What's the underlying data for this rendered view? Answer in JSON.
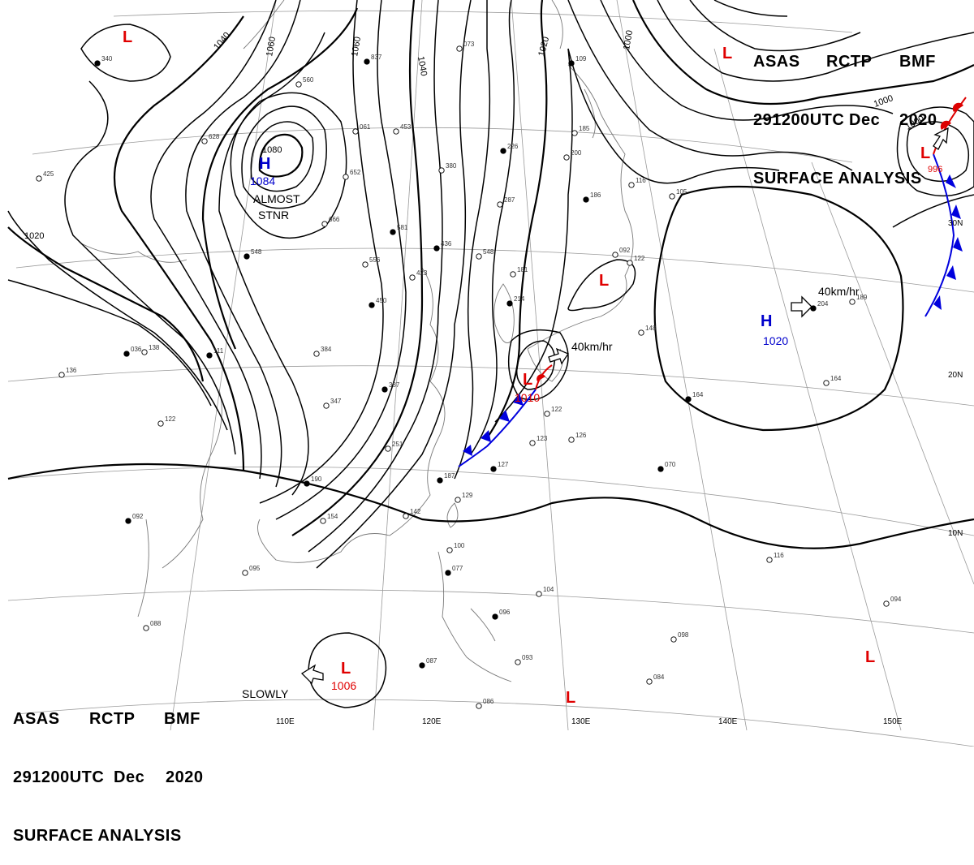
{
  "header": {
    "line1": [
      "ASAS",
      "RCTP",
      "BMF"
    ],
    "line2": [
      "291200UTC",
      "Dec",
      "2020"
    ],
    "line3": "SURFACE ANALYSIS"
  },
  "colors": {
    "isobar": "#000000",
    "low": "#e00000",
    "high": "#0000cc",
    "cold_front": "#0000dd",
    "warm_front": "#dd0000",
    "grid": "#888888",
    "coast": "#777777"
  },
  "isobar_labels": [
    "1020",
    "1040",
    "1060",
    "1080",
    "1060",
    "1040",
    "1020",
    "1000",
    "1000",
    "1000"
  ],
  "pressure_centers": [
    {
      "type": "H",
      "value": "1084",
      "note1": "ALMOST",
      "note2": "STNR"
    },
    {
      "type": "H",
      "value": "1020",
      "motion": "40km/hr"
    },
    {
      "type": "L",
      "value": "1010",
      "motion": "40km/hr"
    },
    {
      "type": "L",
      "value": "1006",
      "motion": "SLOWLY"
    },
    {
      "type": "L",
      "value": ""
    },
    {
      "type": "L",
      "value": ""
    },
    {
      "type": "L",
      "value": ""
    },
    {
      "type": "L",
      "value": ""
    },
    {
      "type": "L",
      "value": ""
    },
    {
      "type": "L",
      "value": "996"
    }
  ],
  "longitude_labels": [
    "110E",
    "120E",
    "130E",
    "140E",
    "150E"
  ],
  "latitude_labels": [
    "30N",
    "20N",
    "10N"
  ],
  "station_obs": [
    "340",
    "560",
    "453",
    "226",
    "380",
    "287",
    "436",
    "548",
    "556",
    "450",
    "423",
    "384",
    "387",
    "347",
    "251",
    "190",
    "154",
    "142",
    "187",
    "129",
    "123",
    "127",
    "126",
    "122",
    "214",
    "181",
    "138",
    "111",
    "136",
    "122",
    "092",
    "095",
    "088",
    "087",
    "086",
    "093",
    "096",
    "104",
    "100",
    "077",
    "084",
    "098",
    "070",
    "094",
    "116",
    "164",
    "164",
    "189",
    "204",
    "105",
    "116",
    "186",
    "200",
    "185",
    "109",
    "122",
    "666",
    "581",
    "628",
    "652",
    "837",
    "148",
    "092",
    "036",
    "061",
    "425",
    "548",
    "073"
  ]
}
